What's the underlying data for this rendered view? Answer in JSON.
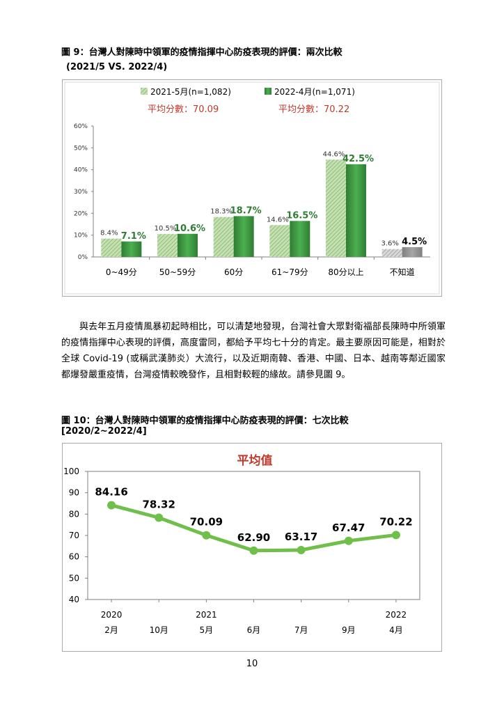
{
  "figure9": {
    "title": "圖 9：台灣人對陳時中領軍的疫情指揮中心防疫表現的評價：兩次比較",
    "subtitle": "(2021/5 VS. 2022/4)",
    "chart_data": {
      "type": "bar",
      "categories": [
        "0~49分",
        "50~59分",
        "60分",
        "61~79分",
        "80分以上",
        "不知道"
      ],
      "series": [
        {
          "name": "2021-5月(n=1,082)",
          "values": [
            8.4,
            10.5,
            18.3,
            14.6,
            44.6,
            3.6
          ],
          "labels": [
            "8.4%",
            "10.5%",
            "18.3%",
            "14.6%",
            "44.6%",
            "3.6%"
          ]
        },
        {
          "name": "2022-4月(n=1,071)",
          "values": [
            7.1,
            10.6,
            18.7,
            16.5,
            42.5,
            4.5
          ],
          "labels": [
            "7.1%",
            "10.6%",
            "18.7%",
            "16.5%",
            "42.5%",
            "4.5%"
          ]
        }
      ],
      "averages": [
        "平均分數：70.09",
        "平均分數：70.22"
      ],
      "yticks": [
        "0%",
        "10%",
        "20%",
        "30%",
        "40%",
        "50%",
        "60%"
      ],
      "ylim": [
        0,
        60
      ],
      "legend_position": "top",
      "colors": {
        "old": "#a9d18e",
        "new": "#3a8a3a",
        "old_unknown": "#bfbfbf",
        "new_unknown": "#8c8c8c",
        "avg": "#c0392b"
      }
    }
  },
  "paragraph": "與去年五月疫情風暴初起時相比，可以清楚地發現，台灣社會大眾對衛福部長陳時中所領軍的疫情指揮中心表現的評價，高度雷同，都給予平均七十分的肯定。最主要原因可能是，相對於全球 Covid-19 (或稱武漢肺炎）大流行，以及近期南韓、香港、中國、日本、越南等鄰近國家都爆發嚴重疫情，台灣疫情較晚發作，且相對較輕的緣故。請參見圖 9。",
  "figure10": {
    "title": "圖 10：台灣人對陳時中領軍的疫情指揮中心防疫表現的評價：七次比較",
    "subtitle": "[2020/2~2022/4]",
    "chart_data": {
      "type": "line",
      "title": "平均值",
      "x_months": [
        "2月",
        "10月",
        "5月",
        "6月",
        "7月",
        "9月",
        "4月"
      ],
      "x_years": [
        "2020",
        "",
        "2021",
        "",
        "",
        "",
        "2022"
      ],
      "values": [
        84.16,
        78.32,
        70.09,
        62.9,
        63.17,
        67.47,
        70.22
      ],
      "labels": [
        "84.16",
        "78.32",
        "70.09",
        "62.90",
        "63.17",
        "67.47",
        "70.22"
      ],
      "yticks": [
        "40",
        "50",
        "60",
        "70",
        "80",
        "90",
        "100"
      ],
      "ylim": [
        40,
        100
      ],
      "colors": {
        "line": "#6fbf4a",
        "title": "#c0392b"
      }
    }
  },
  "page_number": "10"
}
